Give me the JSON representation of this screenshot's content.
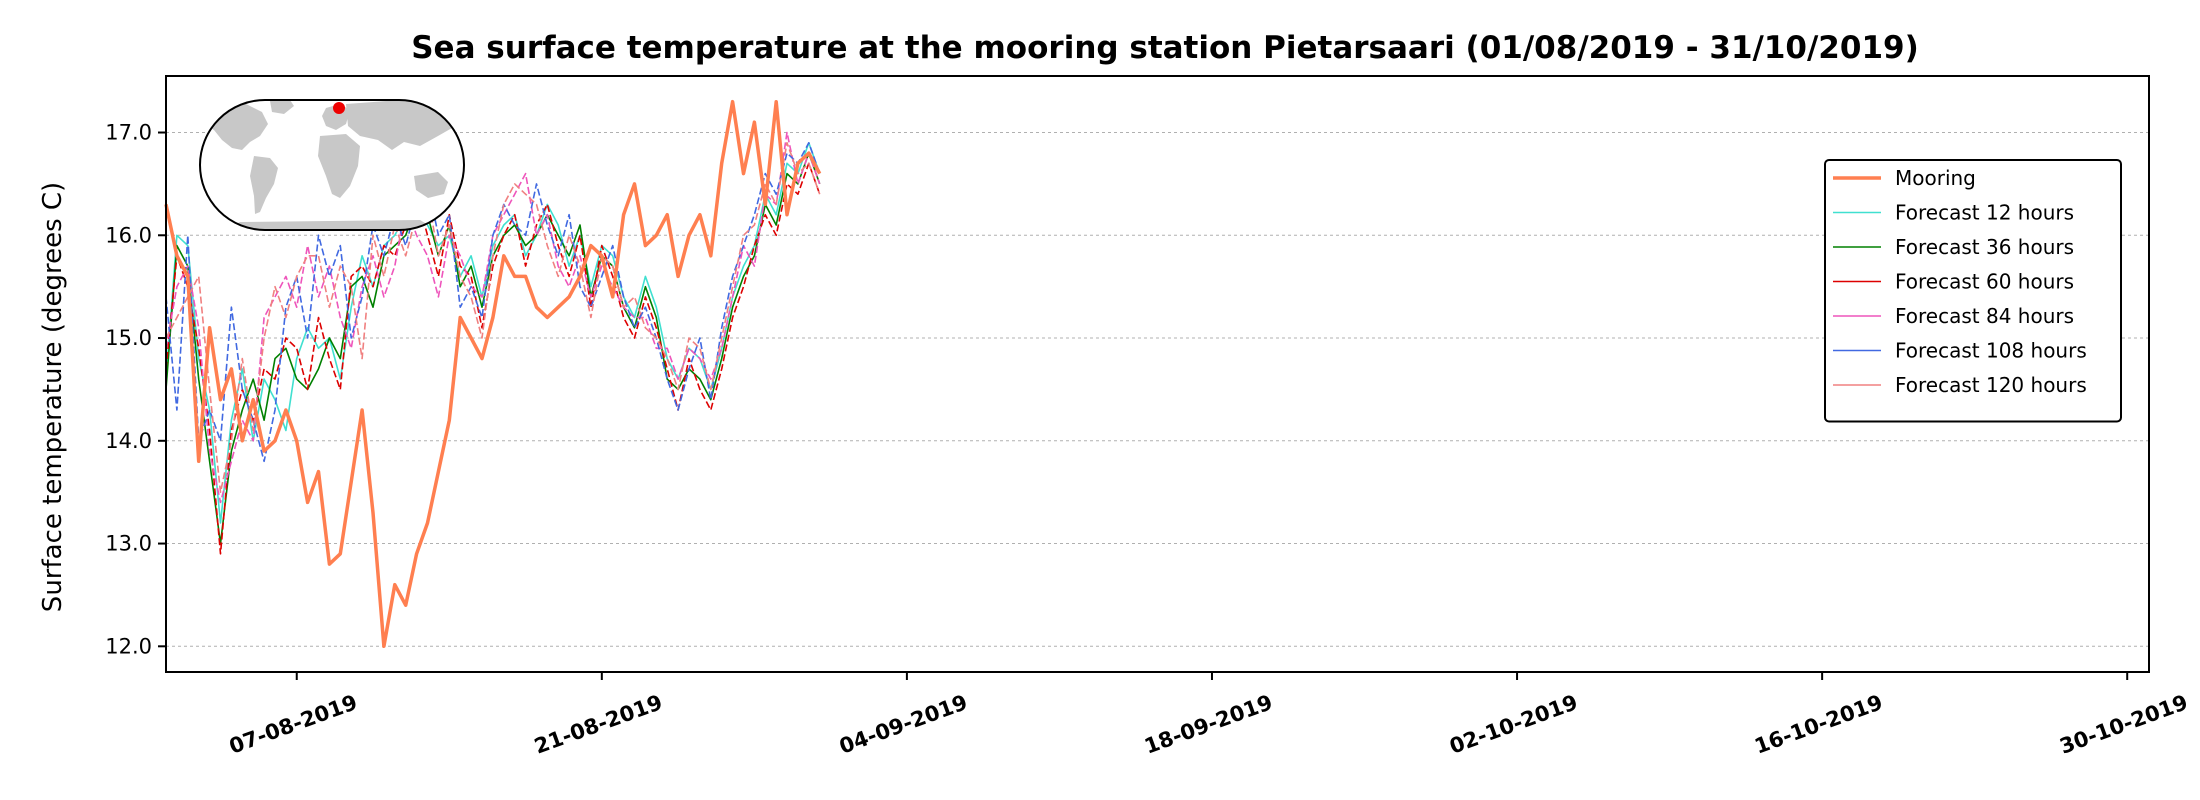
{
  "chart_data": {
    "type": "line",
    "title": "Sea surface temperature at the mooring station Pietarsaari (01/08/2019 - 31/10/2019)",
    "ylabel": "Surface temperature (degrees C)",
    "xlabel": "",
    "xlim": [
      "2019-08-01",
      "2019-10-31"
    ],
    "ylim": [
      11.75,
      17.55
    ],
    "y_ticks": [
      12.0,
      13.0,
      14.0,
      15.0,
      16.0,
      17.0
    ],
    "y_tick_labels": [
      "12.0",
      "13.0",
      "14.0",
      "15.0",
      "16.0",
      "17.0"
    ],
    "x_ticks": [
      "2019-08-07",
      "2019-08-21",
      "2019-09-04",
      "2019-09-18",
      "2019-10-02",
      "2019-10-16",
      "2019-10-30"
    ],
    "x_tick_labels": [
      "07-08-2019",
      "21-08-2019",
      "04-09-2019",
      "18-09-2019",
      "02-10-2019",
      "16-10-2019",
      "30-10-2019"
    ],
    "grid": "horizontal dotted",
    "legend_position": "right",
    "inset_map": {
      "type": "world-map",
      "marker_color": "#ee0000"
    },
    "series": [
      {
        "name": "Mooring",
        "color": "#ff7f50",
        "style": "solid-thick",
        "x": [
          "2019-08-01",
          "2019-08-01T12",
          "2019-08-02",
          "2019-08-02T12",
          "2019-08-03",
          "2019-08-03T12",
          "2019-08-04",
          "2019-08-04T12",
          "2019-08-05",
          "2019-08-05T12",
          "2019-08-06",
          "2019-08-06T12",
          "2019-08-07",
          "2019-08-07T12",
          "2019-08-08",
          "2019-08-08T12",
          "2019-08-09",
          "2019-08-09T12",
          "2019-08-10",
          "2019-08-10T12",
          "2019-08-11",
          "2019-08-11T12",
          "2019-08-12",
          "2019-08-12T12",
          "2019-08-13",
          "2019-08-13T12",
          "2019-08-14",
          "2019-08-14T12",
          "2019-08-15",
          "2019-08-15T12",
          "2019-08-16",
          "2019-08-16T12",
          "2019-08-17",
          "2019-08-17T12",
          "2019-08-18",
          "2019-08-18T12",
          "2019-08-19",
          "2019-08-19T12",
          "2019-08-20",
          "2019-08-20T12",
          "2019-08-21",
          "2019-08-21T12",
          "2019-08-22",
          "2019-08-22T12",
          "2019-08-23",
          "2019-08-23T12",
          "2019-08-24",
          "2019-08-24T12",
          "2019-08-25",
          "2019-08-25T12",
          "2019-08-26",
          "2019-08-26T12",
          "2019-08-27",
          "2019-08-27T12",
          "2019-08-28",
          "2019-08-28T12",
          "2019-08-29",
          "2019-08-29T12",
          "2019-08-30",
          "2019-08-30T12",
          "2019-08-31"
        ],
        "values": [
          16.3,
          15.8,
          15.6,
          13.8,
          15.1,
          14.4,
          14.7,
          14.0,
          14.4,
          13.9,
          14.0,
          14.3,
          14.0,
          13.4,
          13.7,
          12.8,
          12.9,
          13.6,
          14.3,
          13.3,
          12.0,
          12.6,
          12.4,
          12.9,
          13.2,
          13.7,
          14.2,
          15.2,
          15.0,
          14.8,
          15.2,
          15.8,
          15.6,
          15.6,
          15.3,
          15.2,
          15.3,
          15.4,
          15.6,
          15.9,
          15.8,
          15.4,
          16.2,
          16.5,
          15.9,
          16.0,
          16.2,
          15.6,
          16.0,
          16.2,
          15.8,
          16.7,
          17.3,
          16.6,
          17.1,
          16.3,
          17.3,
          16.2,
          16.7,
          16.8,
          16.6
        ]
      },
      {
        "name": "Forecast 12 hours",
        "color": "#40e0d0",
        "style": "solid",
        "x": [
          "2019-08-01",
          "2019-08-01T12",
          "2019-08-02",
          "2019-08-02T12",
          "2019-08-03",
          "2019-08-03T12",
          "2019-08-04",
          "2019-08-04T12",
          "2019-08-05",
          "2019-08-05T12",
          "2019-08-06",
          "2019-08-06T12",
          "2019-08-07",
          "2019-08-07T12",
          "2019-08-08",
          "2019-08-08T12",
          "2019-08-09",
          "2019-08-09T12",
          "2019-08-10",
          "2019-08-10T12",
          "2019-08-11",
          "2019-08-11T12",
          "2019-08-12",
          "2019-08-12T12",
          "2019-08-13",
          "2019-08-13T12",
          "2019-08-14",
          "2019-08-14T12",
          "2019-08-15",
          "2019-08-15T12",
          "2019-08-16",
          "2019-08-16T12",
          "2019-08-17",
          "2019-08-17T12",
          "2019-08-18",
          "2019-08-18T12",
          "2019-08-19",
          "2019-08-19T12",
          "2019-08-20",
          "2019-08-20T12",
          "2019-08-21",
          "2019-08-21T12",
          "2019-08-22",
          "2019-08-22T12",
          "2019-08-23",
          "2019-08-23T12",
          "2019-08-24",
          "2019-08-24T12",
          "2019-08-25",
          "2019-08-25T12",
          "2019-08-26",
          "2019-08-26T12",
          "2019-08-27",
          "2019-08-27T12",
          "2019-08-28",
          "2019-08-28T12",
          "2019-08-29",
          "2019-08-29T12",
          "2019-08-30",
          "2019-08-30T12",
          "2019-08-31"
        ],
        "values": [
          14.6,
          16.0,
          15.9,
          14.8,
          14.3,
          13.2,
          14.2,
          14.7,
          14.0,
          14.6,
          14.4,
          14.1,
          14.8,
          15.1,
          14.9,
          15.0,
          14.6,
          15.3,
          15.8,
          15.5,
          15.9,
          16.0,
          16.2,
          16.4,
          16.1,
          15.9,
          16.0,
          15.6,
          15.8,
          15.4,
          15.9,
          16.1,
          16.2,
          15.8,
          16.0,
          16.3,
          16.1,
          15.7,
          16.0,
          15.5,
          15.9,
          15.8,
          15.4,
          15.2,
          15.6,
          15.3,
          14.8,
          14.6,
          14.9,
          14.8,
          14.5,
          14.9,
          15.4,
          15.7,
          15.9,
          16.4,
          16.2,
          16.7,
          16.6,
          16.9,
          16.6
        ]
      },
      {
        "name": "Forecast 36 hours",
        "color": "#008000",
        "style": "solid",
        "x": [
          "2019-08-01",
          "2019-08-01T12",
          "2019-08-02",
          "2019-08-02T12",
          "2019-08-03",
          "2019-08-03T12",
          "2019-08-04",
          "2019-08-04T12",
          "2019-08-05",
          "2019-08-05T12",
          "2019-08-06",
          "2019-08-06T12",
          "2019-08-07",
          "2019-08-07T12",
          "2019-08-08",
          "2019-08-08T12",
          "2019-08-09",
          "2019-08-09T12",
          "2019-08-10",
          "2019-08-10T12",
          "2019-08-11",
          "2019-08-11T12",
          "2019-08-12",
          "2019-08-12T12",
          "2019-08-13",
          "2019-08-13T12",
          "2019-08-14",
          "2019-08-14T12",
          "2019-08-15",
          "2019-08-15T12",
          "2019-08-16",
          "2019-08-16T12",
          "2019-08-17",
          "2019-08-17T12",
          "2019-08-18",
          "2019-08-18T12",
          "2019-08-19",
          "2019-08-19T12",
          "2019-08-20",
          "2019-08-20T12",
          "2019-08-21",
          "2019-08-21T12",
          "2019-08-22",
          "2019-08-22T12",
          "2019-08-23",
          "2019-08-23T12",
          "2019-08-24",
          "2019-08-24T12",
          "2019-08-25",
          "2019-08-25T12",
          "2019-08-26",
          "2019-08-26T12",
          "2019-08-27",
          "2019-08-27T12",
          "2019-08-28",
          "2019-08-28T12",
          "2019-08-29",
          "2019-08-29T12",
          "2019-08-30",
          "2019-08-30T12",
          "2019-08-31"
        ],
        "values": [
          14.5,
          15.9,
          15.7,
          14.6,
          13.8,
          13.0,
          13.9,
          14.3,
          14.6,
          14.2,
          14.8,
          14.9,
          14.6,
          14.5,
          14.7,
          15.0,
          14.8,
          15.5,
          15.6,
          15.3,
          15.8,
          15.9,
          16.0,
          16.3,
          16.2,
          15.8,
          16.1,
          15.5,
          15.7,
          15.3,
          15.8,
          16.0,
          16.1,
          15.9,
          16.0,
          16.2,
          16.0,
          15.8,
          16.1,
          15.4,
          15.8,
          15.7,
          15.3,
          15.1,
          15.5,
          15.2,
          14.6,
          14.5,
          14.7,
          14.6,
          14.4,
          14.8,
          15.3,
          15.6,
          15.8,
          16.3,
          16.1,
          16.6,
          16.5,
          16.8,
          16.5
        ]
      },
      {
        "name": "Forecast 60 hours",
        "color": "#dd0000",
        "style": "dashed",
        "x": [
          "2019-08-01",
          "2019-08-01T12",
          "2019-08-02",
          "2019-08-02T12",
          "2019-08-03",
          "2019-08-03T12",
          "2019-08-04",
          "2019-08-04T12",
          "2019-08-05",
          "2019-08-05T12",
          "2019-08-06",
          "2019-08-06T12",
          "2019-08-07",
          "2019-08-07T12",
          "2019-08-08",
          "2019-08-08T12",
          "2019-08-09",
          "2019-08-09T12",
          "2019-08-10",
          "2019-08-10T12",
          "2019-08-11",
          "2019-08-11T12",
          "2019-08-12",
          "2019-08-12T12",
          "2019-08-13",
          "2019-08-13T12",
          "2019-08-14",
          "2019-08-14T12",
          "2019-08-15",
          "2019-08-15T12",
          "2019-08-16",
          "2019-08-16T12",
          "2019-08-17",
          "2019-08-17T12",
          "2019-08-18",
          "2019-08-18T12",
          "2019-08-19",
          "2019-08-19T12",
          "2019-08-20",
          "2019-08-20T12",
          "2019-08-21",
          "2019-08-21T12",
          "2019-08-22",
          "2019-08-22T12",
          "2019-08-23",
          "2019-08-23T12",
          "2019-08-24",
          "2019-08-24T12",
          "2019-08-25",
          "2019-08-25T12",
          "2019-08-26",
          "2019-08-26T12",
          "2019-08-27",
          "2019-08-27T12",
          "2019-08-28",
          "2019-08-28T12",
          "2019-08-29",
          "2019-08-29T12",
          "2019-08-30",
          "2019-08-30T12",
          "2019-08-31"
        ],
        "values": [
          14.7,
          15.8,
          15.5,
          14.9,
          14.1,
          12.9,
          14.1,
          14.5,
          14.2,
          14.7,
          14.6,
          15.0,
          14.9,
          14.5,
          15.2,
          14.8,
          14.5,
          15.6,
          15.7,
          15.5,
          15.9,
          15.8,
          16.1,
          16.4,
          16.0,
          15.6,
          16.2,
          15.7,
          15.6,
          15.1,
          15.7,
          16.0,
          16.2,
          15.7,
          16.1,
          16.3,
          15.9,
          15.6,
          16.0,
          15.3,
          15.9,
          15.6,
          15.2,
          15.0,
          15.4,
          15.1,
          14.7,
          14.3,
          14.8,
          14.5,
          14.3,
          14.7,
          15.2,
          15.5,
          15.9,
          16.2,
          16.0,
          16.5,
          16.4,
          16.7,
          16.4
        ]
      },
      {
        "name": "Forecast 84 hours",
        "color": "#ee55bb",
        "style": "dashed",
        "x": [
          "2019-08-01",
          "2019-08-01T12",
          "2019-08-02",
          "2019-08-02T12",
          "2019-08-03",
          "2019-08-03T12",
          "2019-08-04",
          "2019-08-04T12",
          "2019-08-05",
          "2019-08-05T12",
          "2019-08-06",
          "2019-08-06T12",
          "2019-08-07",
          "2019-08-07T12",
          "2019-08-08",
          "2019-08-08T12",
          "2019-08-09",
          "2019-08-09T12",
          "2019-08-10",
          "2019-08-10T12",
          "2019-08-11",
          "2019-08-11T12",
          "2019-08-12",
          "2019-08-12T12",
          "2019-08-13",
          "2019-08-13T12",
          "2019-08-14",
          "2019-08-14T12",
          "2019-08-15",
          "2019-08-15T12",
          "2019-08-16",
          "2019-08-16T12",
          "2019-08-17",
          "2019-08-17T12",
          "2019-08-18",
          "2019-08-18T12",
          "2019-08-19",
          "2019-08-19T12",
          "2019-08-20",
          "2019-08-20T12",
          "2019-08-21",
          "2019-08-21T12",
          "2019-08-22",
          "2019-08-22T12",
          "2019-08-23",
          "2019-08-23T12",
          "2019-08-24",
          "2019-08-24T12",
          "2019-08-25",
          "2019-08-25T12",
          "2019-08-26",
          "2019-08-26T12",
          "2019-08-27",
          "2019-08-27T12",
          "2019-08-28",
          "2019-08-28T12",
          "2019-08-29",
          "2019-08-29T12",
          "2019-08-30",
          "2019-08-30T12",
          "2019-08-31"
        ],
        "values": [
          14.9,
          15.5,
          15.7,
          15.1,
          13.9,
          13.4,
          13.8,
          14.2,
          14.0,
          15.2,
          15.4,
          15.6,
          15.3,
          15.9,
          15.4,
          15.7,
          15.2,
          14.9,
          15.5,
          15.8,
          15.4,
          15.7,
          16.3,
          16.0,
          15.8,
          15.4,
          16.0,
          15.8,
          15.5,
          15.4,
          16.0,
          16.2,
          16.4,
          16.6,
          16.0,
          16.2,
          15.7,
          15.5,
          15.8,
          15.4,
          15.7,
          15.5,
          15.3,
          15.2,
          15.2,
          14.9,
          14.9,
          14.6,
          14.9,
          14.8,
          14.6,
          14.9,
          15.4,
          15.9,
          15.7,
          16.4,
          16.3,
          17.0,
          16.5,
          16.8,
          16.5
        ]
      },
      {
        "name": "Forecast 108 hours",
        "color": "#4169e1",
        "style": "dashed",
        "x": [
          "2019-08-01",
          "2019-08-01T12",
          "2019-08-02",
          "2019-08-02T12",
          "2019-08-03",
          "2019-08-03T12",
          "2019-08-04",
          "2019-08-04T12",
          "2019-08-05",
          "2019-08-05T12",
          "2019-08-06",
          "2019-08-06T12",
          "2019-08-07",
          "2019-08-07T12",
          "2019-08-08",
          "2019-08-08T12",
          "2019-08-09",
          "2019-08-09T12",
          "2019-08-10",
          "2019-08-10T12",
          "2019-08-11",
          "2019-08-11T12",
          "2019-08-12",
          "2019-08-12T12",
          "2019-08-13",
          "2019-08-13T12",
          "2019-08-14",
          "2019-08-14T12",
          "2019-08-15",
          "2019-08-15T12",
          "2019-08-16",
          "2019-08-16T12",
          "2019-08-17",
          "2019-08-17T12",
          "2019-08-18",
          "2019-08-18T12",
          "2019-08-19",
          "2019-08-19T12",
          "2019-08-20",
          "2019-08-20T12",
          "2019-08-21",
          "2019-08-21T12",
          "2019-08-22",
          "2019-08-22T12",
          "2019-08-23",
          "2019-08-23T12",
          "2019-08-24",
          "2019-08-24T12",
          "2019-08-25",
          "2019-08-25T12",
          "2019-08-26",
          "2019-08-26T12",
          "2019-08-27",
          "2019-08-27T12",
          "2019-08-28",
          "2019-08-28T12",
          "2019-08-29",
          "2019-08-29T12",
          "2019-08-30",
          "2019-08-30T12",
          "2019-08-31"
        ],
        "values": [
          15.4,
          14.3,
          16.0,
          14.0,
          14.3,
          14.0,
          15.3,
          14.5,
          14.2,
          13.8,
          14.3,
          15.3,
          15.6,
          15.0,
          16.0,
          15.6,
          15.9,
          15.0,
          15.4,
          16.1,
          15.8,
          16.2,
          15.9,
          16.3,
          16.5,
          16.0,
          16.2,
          15.3,
          15.5,
          15.2,
          16.0,
          16.3,
          16.1,
          16.0,
          16.5,
          16.1,
          15.8,
          16.2,
          15.5,
          15.3,
          15.6,
          15.9,
          15.4,
          15.1,
          15.3,
          15.0,
          14.6,
          14.3,
          14.7,
          15.0,
          14.4,
          15.1,
          15.6,
          15.9,
          16.2,
          16.6,
          16.4,
          16.8,
          16.7,
          16.9,
          16.6
        ]
      },
      {
        "name": "Forecast 120 hours",
        "color": "#f08080",
        "style": "dashed",
        "x": [
          "2019-08-01",
          "2019-08-01T12",
          "2019-08-02",
          "2019-08-02T12",
          "2019-08-03",
          "2019-08-03T12",
          "2019-08-04",
          "2019-08-04T12",
          "2019-08-05",
          "2019-08-05T12",
          "2019-08-06",
          "2019-08-06T12",
          "2019-08-07",
          "2019-08-07T12",
          "2019-08-08",
          "2019-08-08T12",
          "2019-08-09",
          "2019-08-09T12",
          "2019-08-10",
          "2019-08-10T12",
          "2019-08-11",
          "2019-08-11T12",
          "2019-08-12",
          "2019-08-12T12",
          "2019-08-13",
          "2019-08-13T12",
          "2019-08-14",
          "2019-08-14T12",
          "2019-08-15",
          "2019-08-15T12",
          "2019-08-16",
          "2019-08-16T12",
          "2019-08-17",
          "2019-08-17T12",
          "2019-08-18",
          "2019-08-18T12",
          "2019-08-19",
          "2019-08-19T12",
          "2019-08-20",
          "2019-08-20T12",
          "2019-08-21",
          "2019-08-21T12",
          "2019-08-22",
          "2019-08-22T12",
          "2019-08-23",
          "2019-08-23T12",
          "2019-08-24",
          "2019-08-24T12",
          "2019-08-25",
          "2019-08-25T12",
          "2019-08-26",
          "2019-08-26T12",
          "2019-08-27",
          "2019-08-27T12",
          "2019-08-28",
          "2019-08-28T12",
          "2019-08-29",
          "2019-08-29T12",
          "2019-08-30",
          "2019-08-30T12",
          "2019-08-31"
        ],
        "values": [
          15.0,
          15.2,
          15.4,
          15.6,
          14.5,
          13.5,
          14.0,
          14.8,
          14.1,
          15.0,
          15.5,
          15.2,
          15.6,
          15.8,
          15.8,
          15.3,
          15.7,
          15.5,
          14.8,
          16.0,
          15.6,
          16.1,
          15.8,
          16.2,
          16.4,
          15.8,
          16.1,
          15.6,
          15.4,
          15.0,
          15.8,
          16.3,
          16.5,
          16.4,
          16.3,
          15.9,
          15.6,
          16.0,
          15.7,
          15.2,
          15.8,
          15.7,
          15.3,
          15.4,
          15.1,
          15.0,
          14.8,
          14.5,
          15.0,
          14.9,
          14.5,
          15.0,
          15.5,
          16.0,
          16.1,
          16.5,
          16.3,
          16.9,
          16.6,
          16.7,
          16.4
        ]
      }
    ]
  }
}
